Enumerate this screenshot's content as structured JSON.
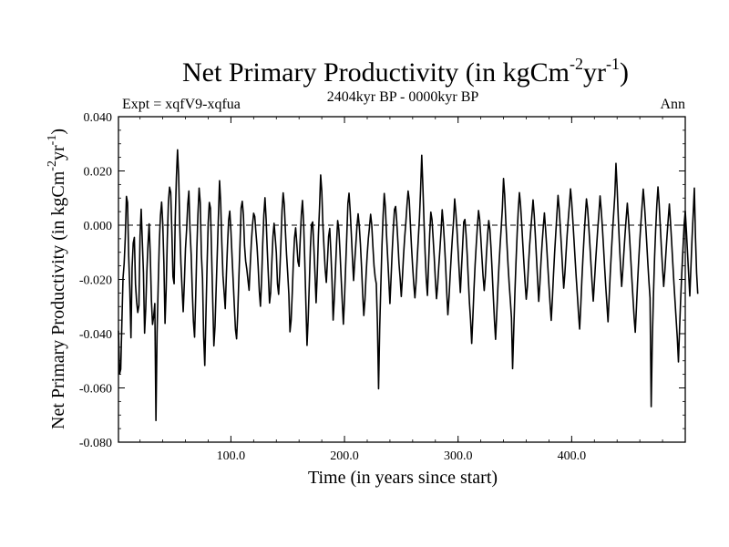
{
  "chart_data": {
    "type": "line",
    "title": {
      "main": "Net Primary Productivity (in kgCm",
      "sup1": "-2",
      "mid": "yr",
      "sup2": "-1",
      "close": ")"
    },
    "subtitle_left": "Expt = xqfV9-xqfua",
    "subtitle_center": "2404kyr BP - 0000kyr BP",
    "subtitle_right": "Ann",
    "xlabel": "Time (in years since start)",
    "ylabel": {
      "main": "Net Primary Productivity (in kgCm",
      "sup1": "-2",
      "mid": "yr",
      "sup2": "-1",
      "close": ")"
    },
    "xlim": [
      1,
      500
    ],
    "ylim": [
      -0.08,
      0.04
    ],
    "xticks": [
      100,
      200,
      300,
      400
    ],
    "xtick_labels": [
      "100.0",
      "200.0",
      "300.0",
      "400.0"
    ],
    "yticks": [
      0.04,
      0.02,
      0.0,
      -0.02,
      -0.04,
      -0.06,
      -0.08
    ],
    "ytick_labels": [
      "0.040",
      "0.020",
      "0.000",
      "-0.020",
      "-0.040",
      "-0.060",
      "-0.080"
    ],
    "reference_line": {
      "y": 0.0,
      "style": "dashed"
    },
    "series": [
      {
        "name": "Ann",
        "x_start": 1,
        "x_step": 1,
        "values": [
          -0.0389,
          -0.0548,
          -0.0531,
          -0.0361,
          -0.0196,
          -0.0142,
          -0.0047,
          0.0106,
          0.0084,
          -0.0114,
          -0.0237,
          -0.0415,
          -0.0157,
          -0.0066,
          -0.0045,
          -0.0218,
          -0.0283,
          -0.0322,
          -0.0296,
          -0.0041,
          0.0059,
          -0.006,
          -0.0175,
          -0.0398,
          -0.0308,
          -0.0171,
          -0.0071,
          0.0005,
          -0.0108,
          -0.0276,
          -0.0366,
          -0.0336,
          -0.0289,
          -0.072,
          -0.0395,
          -0.0219,
          -0.0058,
          0.0036,
          0.0085,
          0.0006,
          -0.0142,
          -0.0362,
          -0.0235,
          -0.0052,
          0.0088,
          0.014,
          0.0121,
          -0.0023,
          -0.019,
          -0.0216,
          0.0023,
          0.0175,
          0.0278,
          0.0183,
          -0.0009,
          -0.0142,
          -0.0233,
          -0.0319,
          -0.0212,
          -0.0087,
          -0.0016,
          0.0076,
          0.0126,
          -0.0018,
          -0.0107,
          -0.0244,
          -0.0355,
          -0.0413,
          -0.0264,
          -0.0087,
          0.0042,
          0.0137,
          0.0083,
          -0.0108,
          -0.0196,
          -0.041,
          -0.0517,
          -0.0333,
          -0.0149,
          0.0007,
          0.0084,
          0.0063,
          -0.0105,
          -0.028,
          -0.0445,
          -0.0374,
          -0.0234,
          -0.0104,
          0.0032,
          0.0164,
          0.0084,
          -0.0066,
          -0.0186,
          -0.0245,
          -0.0308,
          -0.0183,
          -0.0075,
          0.0019,
          0.0052,
          -0.002,
          -0.0115,
          -0.0206,
          -0.0296,
          -0.0384,
          -0.0419,
          -0.0327,
          -0.0195,
          -0.0072,
          0.0064,
          0.0088,
          0.0038,
          -0.0076,
          -0.0133,
          -0.0162,
          -0.0202,
          -0.024,
          -0.0149,
          -0.0063,
          0.0,
          0.0044,
          0.0032,
          -0.0026,
          -0.0078,
          -0.0153,
          -0.0243,
          -0.0299,
          -0.0204,
          -0.007,
          0.0038,
          0.0101,
          0.0023,
          -0.009,
          -0.0188,
          -0.0287,
          -0.0248,
          -0.014,
          -0.0043,
          0.0007,
          -0.0045,
          -0.0102,
          -0.0216,
          -0.0255,
          -0.0176,
          -0.0068,
          0.0054,
          0.0119,
          0.0075,
          -0.0023,
          -0.0109,
          -0.0178,
          -0.0254,
          -0.0393,
          -0.0351,
          -0.0251,
          -0.0132,
          -0.0047,
          -0.001,
          -0.0068,
          -0.0134,
          -0.0152,
          -0.0054,
          0.0038,
          0.0091,
          0.001,
          -0.0127,
          -0.0287,
          -0.0443,
          -0.0348,
          -0.0219,
          -0.0081,
          0.0003,
          0.0012,
          -0.008,
          -0.0177,
          -0.0286,
          -0.0181,
          -0.004,
          0.0063,
          0.0185,
          0.0126,
          -0.0001,
          -0.0085,
          -0.0163,
          -0.0211,
          -0.0132,
          -0.0042,
          -0.0012,
          -0.0099,
          -0.0205,
          -0.035,
          -0.0272,
          -0.0169,
          -0.0067,
          0.0017,
          -0.0015,
          -0.0094,
          -0.0188,
          -0.028,
          -0.0365,
          -0.0273,
          -0.0153,
          -0.004,
          0.008,
          0.0118,
          0.0053,
          -0.0032,
          -0.0123,
          -0.0204,
          -0.0134,
          -0.0069,
          -0.0003,
          0.0042,
          -0.0003,
          -0.0069,
          -0.0154,
          -0.0253,
          -0.0333,
          -0.0275,
          -0.0183,
          -0.0108,
          -0.0049,
          -0.0007,
          0.004,
          0.0,
          -0.0078,
          -0.015,
          -0.0192,
          -0.0216,
          -0.0366,
          -0.0603,
          -0.0378,
          -0.0221,
          -0.0074,
          0.0036,
          0.0117,
          0.0066,
          -0.0036,
          -0.0117,
          -0.0201,
          -0.0289,
          -0.0194,
          -0.0096,
          -0.0012,
          0.0058,
          0.0069,
          0.0013,
          -0.0061,
          -0.0142,
          -0.0197,
          -0.0263,
          -0.0192,
          -0.011,
          -0.0044,
          0.0009,
          0.0073,
          0.0126,
          0.0092,
          0.0003,
          -0.0082,
          -0.0153,
          -0.0218,
          -0.0268,
          -0.021,
          -0.0125,
          -0.0048,
          0.0027,
          0.0132,
          0.0258,
          0.0143,
          0.0013,
          -0.0104,
          -0.0199,
          -0.0259,
          -0.0146,
          -0.0033,
          0.0048,
          0.0022,
          -0.0047,
          -0.0119,
          -0.0201,
          -0.0271,
          -0.0222,
          -0.0152,
          -0.0089,
          -0.0023,
          0.0057,
          0.0006,
          -0.0065,
          -0.0146,
          -0.0247,
          -0.033,
          -0.0267,
          -0.0187,
          -0.0112,
          -0.0044,
          0.0015,
          0.0097,
          0.0048,
          -0.0015,
          -0.0093,
          -0.0172,
          -0.0248,
          -0.016,
          -0.0076,
          0.0012,
          0.0021,
          -0.0034,
          -0.0107,
          -0.0199,
          -0.0286,
          -0.035,
          -0.0436,
          -0.034,
          -0.0235,
          -0.0145,
          -0.0071,
          -0.0005,
          0.0054,
          0.0021,
          -0.0046,
          -0.012,
          -0.0188,
          -0.0241,
          -0.0187,
          -0.0104,
          -0.0035,
          0.0017,
          -0.0016,
          -0.0085,
          -0.0172,
          -0.0262,
          -0.0349,
          -0.0421,
          -0.0331,
          -0.0234,
          -0.0149,
          -0.0074,
          -0.0008,
          0.0063,
          0.0172,
          0.0113,
          0.0016,
          -0.0068,
          -0.0148,
          -0.0217,
          -0.0277,
          -0.0342,
          -0.0529,
          -0.0388,
          -0.0251,
          -0.0135,
          -0.0032,
          0.0058,
          0.012,
          0.0073,
          0.0005,
          -0.0071,
          -0.0143,
          -0.0212,
          -0.0273,
          -0.0227,
          -0.0146,
          -0.0074,
          -0.0016,
          0.0038,
          0.0093,
          0.0039,
          -0.0037,
          -0.0119,
          -0.0201,
          -0.0281,
          -0.0216,
          -0.0134,
          -0.0066,
          -0.0007,
          0.0045,
          -0.0013,
          -0.0079,
          -0.0152,
          -0.0223,
          -0.029,
          -0.0351,
          -0.0273,
          -0.0182,
          -0.0101,
          -0.003,
          0.004,
          0.011,
          0.0061,
          -0.0008,
          -0.0081,
          -0.016,
          -0.0232,
          -0.0179,
          -0.0106,
          -0.0037,
          0.0021,
          0.0075,
          0.0134,
          0.0085,
          0.0019,
          -0.0051,
          -0.0123,
          -0.0193,
          -0.0256,
          -0.0325,
          -0.0383,
          -0.0298,
          -0.0199,
          -0.0114,
          -0.0037,
          0.0033,
          0.0097,
          0.0062,
          0.0,
          -0.007,
          -0.0144,
          -0.0216,
          -0.028,
          -0.0212,
          -0.0139,
          -0.0074,
          -0.0012,
          0.0044,
          0.0108,
          0.0057,
          -0.0006,
          -0.0078,
          -0.0154,
          -0.0226,
          -0.029,
          -0.0356,
          -0.0267,
          -0.0176,
          -0.0095,
          -0.0021,
          0.0044,
          0.0111,
          0.0228,
          0.014,
          0.0031,
          -0.0065,
          -0.015,
          -0.0226,
          -0.0167,
          -0.0098,
          -0.0033,
          0.0026,
          0.0081,
          0.0022,
          -0.0046,
          -0.0122,
          -0.0198,
          -0.027,
          -0.0341,
          -0.0395,
          -0.0305,
          -0.0212,
          -0.0131,
          -0.0056,
          0.0012,
          0.0073,
          0.0133,
          0.0081,
          0.0013,
          -0.006,
          -0.0136,
          -0.0206,
          -0.0269,
          -0.0669,
          -0.0421,
          -0.0258,
          -0.0119,
          -0.001,
          0.0077,
          0.0141,
          0.0079,
          -0.0002,
          -0.0085,
          -0.0159,
          -0.0226,
          -0.0171,
          -0.0101,
          -0.0036,
          0.0022,
          0.0078,
          0.0011,
          -0.0061,
          -0.0138,
          -0.0213,
          -0.0281,
          -0.0349,
          -0.0416,
          -0.0504,
          -0.0381,
          -0.0268,
          -0.0172,
          -0.0086,
          0.0001,
          0.0052,
          -0.0021,
          -0.0102,
          -0.0182,
          -0.0261,
          -0.0153,
          -0.0046,
          0.0043,
          0.0137,
          -0.0046,
          -0.0176,
          -0.0253
        ]
      }
    ]
  }
}
